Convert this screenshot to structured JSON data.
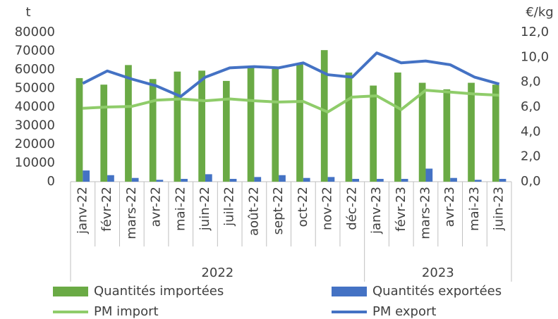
{
  "chart_data": {
    "type": "bar",
    "y_label": "t",
    "y2_label": "€/kg",
    "categories": [
      "janv-22",
      "févr-22",
      "mars-22",
      "avr-22",
      "mai-22",
      "juin-22",
      "juil-22",
      "août-22",
      "sept-22",
      "oct-22",
      "nov-22",
      "déc-22",
      "janv-23",
      "févr-23",
      "mars-23",
      "avr-23",
      "mai-23",
      "juin-23"
    ],
    "groups": [
      {
        "label": "2022",
        "count": 12
      },
      {
        "label": "2023",
        "count": 6
      }
    ],
    "series": [
      {
        "name": "Quantités importées",
        "type": "bar",
        "color": "#6aaa45",
        "values": [
          55500,
          52000,
          62500,
          55000,
          59000,
          59500,
          54000,
          61000,
          61000,
          63000,
          70500,
          58500,
          51500,
          58500,
          53000,
          49500,
          53000,
          52000
        ]
      },
      {
        "name": "Quantités exportées",
        "type": "bar",
        "color": "#4472c4",
        "values": [
          6000,
          3500,
          2000,
          1000,
          1500,
          4000,
          1500,
          2500,
          3500,
          2000,
          2500,
          1500,
          1500,
          1500,
          7000,
          2000,
          1000,
          1500
        ]
      },
      {
        "name": "PM import",
        "type": "line",
        "axis": "y2",
        "color": "#8fcc6a",
        "values": [
          5.9,
          6.0,
          6.05,
          6.55,
          6.65,
          6.5,
          6.65,
          6.5,
          6.4,
          6.45,
          5.6,
          6.8,
          6.9,
          5.8,
          7.35,
          7.2,
          7.05,
          6.95
        ]
      },
      {
        "name": "PM export",
        "type": "line",
        "axis": "y2",
        "color": "#4472c4",
        "values": [
          7.9,
          8.9,
          8.25,
          7.7,
          6.85,
          8.4,
          9.15,
          9.25,
          9.15,
          9.55,
          8.6,
          8.4,
          10.35,
          9.55,
          9.7,
          9.4,
          8.4,
          7.85
        ]
      }
    ],
    "ylim": [
      0,
      80000
    ],
    "yticks": [
      0,
      10000,
      20000,
      30000,
      40000,
      50000,
      60000,
      70000,
      80000
    ],
    "y2lim": [
      0,
      12
    ],
    "y2ticks": [
      {
        "value": 0,
        "label": "0,0"
      },
      {
        "value": 2,
        "label": "2,0"
      },
      {
        "value": 4,
        "label": "4,0"
      },
      {
        "value": 6,
        "label": "6,0"
      },
      {
        "value": 8,
        "label": "8,0"
      },
      {
        "value": 10,
        "label": "10,0"
      },
      {
        "value": 12,
        "label": "12,0"
      }
    ],
    "grid": false
  }
}
